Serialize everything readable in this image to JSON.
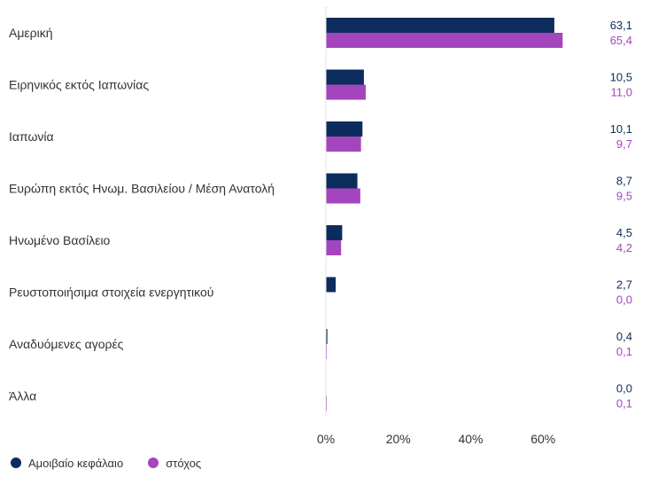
{
  "chart_data": {
    "type": "bar",
    "orientation": "horizontal",
    "categories": [
      "Αμερική",
      "Ειρηνικός εκτός Ιαπωνίας",
      "Ιαπωνία",
      "Ευρώπη εκτός Ηνωμ. Βασιλείου / Μέση Ανατολή",
      "Ηνωμένο Βασίλειο",
      "Ρευστοποιήσιμα στοιχεία ενεργητικού",
      "Αναδυόμενες αγορές",
      "Άλλα"
    ],
    "series": [
      {
        "name": "Αμοιβαίο κεφάλαιο",
        "color": "#0d2c5e",
        "values": [
          63.1,
          10.5,
          10.1,
          8.7,
          4.5,
          2.7,
          0.4,
          0.0
        ],
        "labels": [
          "63,1",
          "10,5",
          "10,1",
          "8,7",
          "4,5",
          "2,7",
          "0,4",
          "0,0"
        ]
      },
      {
        "name": "στόχος",
        "color": "#a445bd",
        "values": [
          65.4,
          11.0,
          9.7,
          9.5,
          4.2,
          0.0,
          0.1,
          0.1
        ],
        "labels": [
          "65,4",
          "11,0",
          "9,7",
          "9,5",
          "4,2",
          "0,0",
          "0,1",
          "0,1"
        ]
      }
    ],
    "x_ticks": [
      "0%",
      "20%",
      "40%",
      "60%"
    ],
    "xlim": [
      0,
      80
    ],
    "grid": false,
    "legend_position": "bottom-left"
  }
}
